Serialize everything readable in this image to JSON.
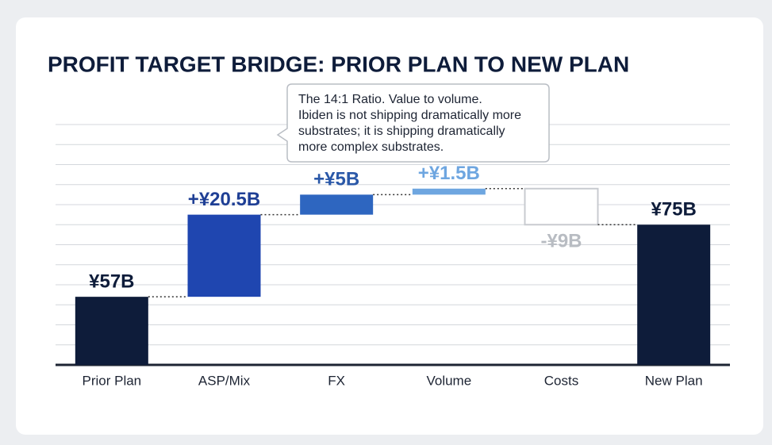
{
  "chart_data": {
    "type": "waterfall",
    "title": "PROFIT TARGET BRIDGE: PRIOR PLAN TO NEW PLAN",
    "categories": [
      "Prior Plan",
      "ASP/Mix",
      "FX",
      "Volume",
      "Costs",
      "New Plan"
    ],
    "measures": [
      "total",
      "relative",
      "relative",
      "relative",
      "relative",
      "total"
    ],
    "values": [
      57,
      20.5,
      5,
      1.5,
      -9,
      75
    ],
    "value_labels": [
      "¥57B",
      "+¥20.5B",
      "+¥5B",
      "+¥1.5B",
      "-¥9B",
      "¥75B"
    ],
    "colors": [
      "#0e1c3a",
      "#1f46b0",
      "#2e66c0",
      "#6ea6e0",
      "#ffffff",
      "#0e1c3a"
    ],
    "label_colors": [
      "#0e1c3a",
      "#1f3f95",
      "#2a58a8",
      "#6ea6e0",
      "#b8bcc2",
      "#0e1c3a"
    ],
    "ylim": [
      40,
      100
    ],
    "yticks": [
      40,
      45,
      50,
      55,
      60,
      65,
      70,
      75,
      80,
      85,
      90,
      95,
      100
    ],
    "grid": true,
    "annotation": [
      "The 14:1 Ratio. Value to volume.",
      "Ibiden is not shipping dramatically more",
      "substrates; it is shipping dramatically",
      "more complex substrates."
    ]
  }
}
